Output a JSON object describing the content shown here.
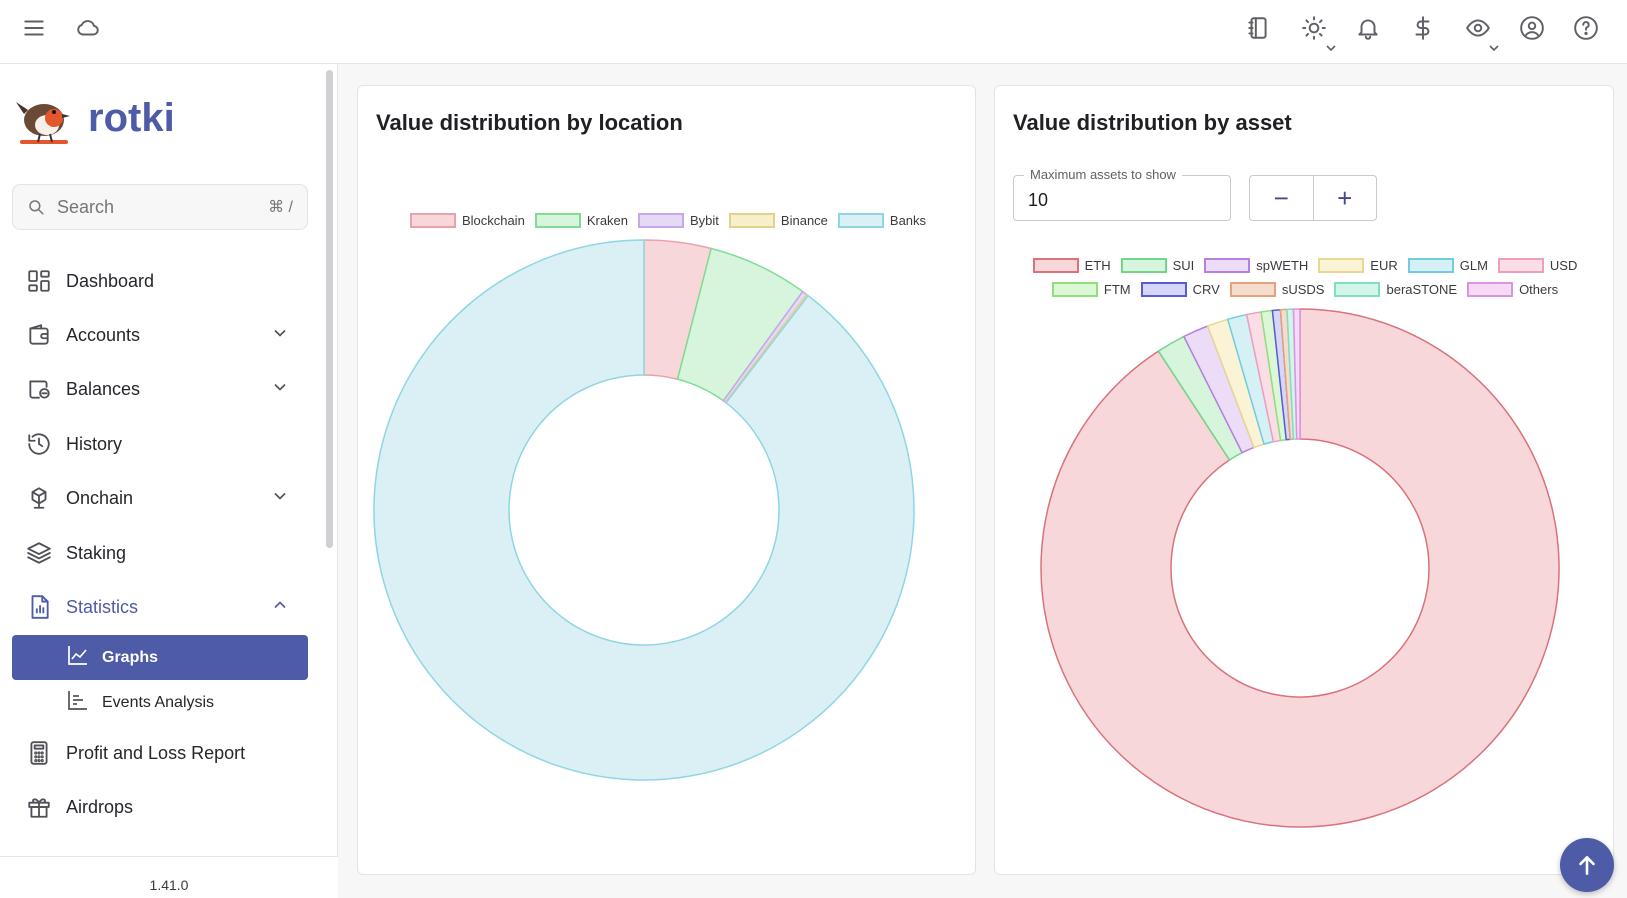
{
  "topbar": {
    "left_icons": [
      "menu-icon",
      "cloud-icon"
    ],
    "right_icons": [
      "notes-icon",
      "theme-sun-icon",
      "bell-icon",
      "dollar-icon",
      "eye-icon",
      "account-icon",
      "help-icon"
    ]
  },
  "sidebar": {
    "brand": "rotki",
    "search_placeholder": "Search",
    "search_shortcut": "⌘ /",
    "items": [
      {
        "label": "Dashboard",
        "icon": "dashboard-icon",
        "expandable": false
      },
      {
        "label": "Accounts",
        "icon": "wallet-icon",
        "expandable": true
      },
      {
        "label": "Balances",
        "icon": "balances-icon",
        "expandable": true
      },
      {
        "label": "History",
        "icon": "history-icon",
        "expandable": false
      },
      {
        "label": "Onchain",
        "icon": "onchain-icon",
        "expandable": true
      },
      {
        "label": "Staking",
        "icon": "layers-icon",
        "expandable": false
      },
      {
        "label": "Statistics",
        "icon": "statistics-icon",
        "expandable": true,
        "expanded": true
      },
      {
        "label": "Profit and Loss Report",
        "icon": "calculator-icon",
        "expandable": false
      },
      {
        "label": "Airdrops",
        "icon": "gift-icon",
        "expandable": false
      }
    ],
    "sub_items": [
      {
        "label": "Graphs",
        "icon": "line-chart-icon",
        "selected": true
      },
      {
        "label": "Events Analysis",
        "icon": "bar-chart-icon",
        "selected": false
      }
    ],
    "version": "1.41.0"
  },
  "cards": {
    "location_title": "Value distribution by location",
    "asset_title": "Value distribution by asset",
    "max_assets_label": "Maximum assets to show",
    "max_assets_value": "10",
    "decrement": "−",
    "increment": "+"
  },
  "accent_color": "#4e5ba6",
  "chart_data": [
    {
      "type": "doughnut",
      "title": "Value distribution by location",
      "labels": [
        "Blockchain",
        "Kraken",
        "Bybit",
        "Binance",
        "Banks"
      ],
      "values": [
        4.0,
        6.0,
        0.3,
        0.1,
        89.6
      ],
      "fill_colors": [
        "#f8d7da",
        "#d6f5dc",
        "#e6d9f5",
        "#f7efc9",
        "#daf0f5"
      ],
      "stroke_colors": [
        "#e8a3aa",
        "#7fdc93",
        "#c3a8ec",
        "#e2d28a",
        "#8fd6e3"
      ],
      "legend_position": "top"
    },
    {
      "type": "doughnut",
      "title": "Value distribution by asset",
      "labels": [
        "ETH",
        "SUI",
        "spWETH",
        "EUR",
        "GLM",
        "USD",
        "FTM",
        "CRV",
        "sUSDS",
        "beraSTONE",
        "Others"
      ],
      "values": [
        90.8,
        1.8,
        1.6,
        1.3,
        1.2,
        0.9,
        0.7,
        0.5,
        0.4,
        0.4,
        0.4
      ],
      "fill_colors": [
        "#f8d7da",
        "#d6f5dc",
        "#ecdcf8",
        "#fbf3d6",
        "#d6f1f6",
        "#fbdde6",
        "#dcf7d6",
        "#d6d6f8",
        "#f6dccd",
        "#d3f4ea",
        "#f5d9f5"
      ],
      "stroke_colors": [
        "#d9727b",
        "#72d68a",
        "#b77fe0",
        "#e9d892",
        "#72cbdf",
        "#ee9fbc",
        "#8ee07c",
        "#5a5ad4",
        "#e2a37e",
        "#7fe0bf",
        "#dc93e0"
      ],
      "legend_position": "top"
    }
  ]
}
